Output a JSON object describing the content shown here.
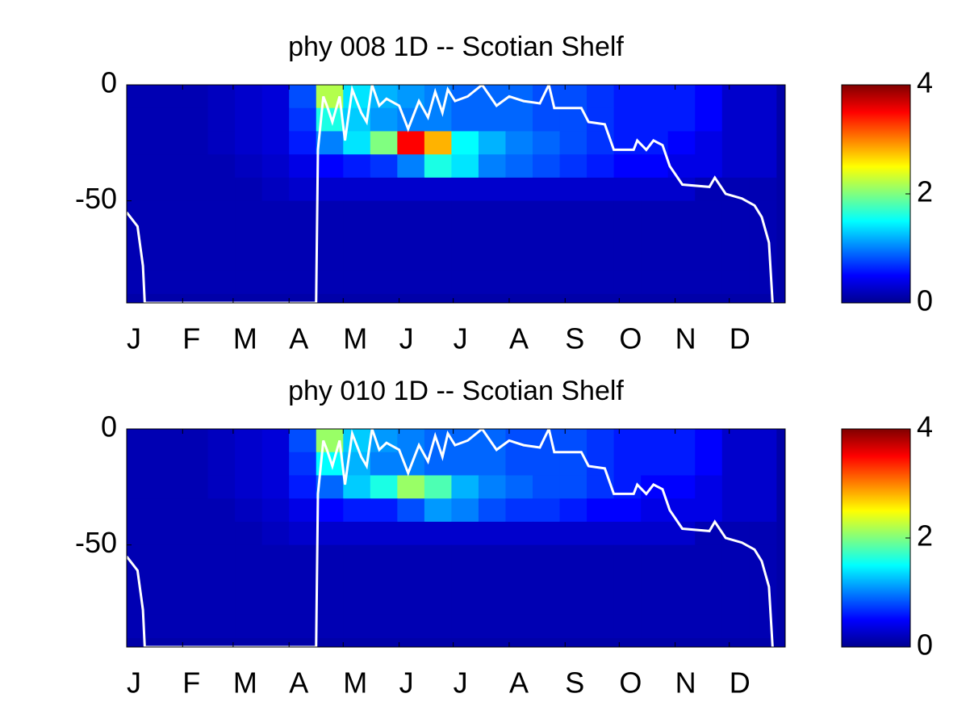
{
  "chart_data": [
    {
      "type": "heatmap",
      "title": "phy  008 1D   -- Scotian Shelf",
      "xlim": [
        0,
        365
      ],
      "xticks": [
        {
          "value": 0,
          "label": "J"
        },
        {
          "value": 31,
          "label": "F"
        },
        {
          "value": 59,
          "label": "M"
        },
        {
          "value": 90,
          "label": "A"
        },
        {
          "value": 120,
          "label": "M"
        },
        {
          "value": 151,
          "label": "J"
        },
        {
          "value": 181,
          "label": "J"
        },
        {
          "value": 212,
          "label": "A"
        },
        {
          "value": 243,
          "label": "S"
        },
        {
          "value": 273,
          "label": "O"
        },
        {
          "value": 304,
          "label": "N"
        },
        {
          "value": 334,
          "label": "D"
        }
      ],
      "ylim": [
        -94,
        0
      ],
      "yticks": [
        -50,
        0
      ],
      "clim": [
        0,
        4
      ],
      "cticks": [
        0,
        2,
        4
      ],
      "x": [
        7.5,
        22.5,
        37.5,
        52.5,
        67.5,
        82.5,
        97.5,
        112.5,
        127.5,
        142.5,
        157.5,
        172.5,
        187.5,
        202.5,
        217.5,
        232.5,
        247.5,
        262.5,
        277.5,
        292.5,
        307.5,
        322.5,
        337.5,
        352.5
      ],
      "y": [
        -5,
        -15,
        -25,
        -35,
        -45,
        -55,
        -65,
        -75,
        -85
      ],
      "z": [
        [
          0.2,
          0.2,
          0.2,
          0.25,
          0.3,
          0.35,
          0.8,
          2.2,
          1.4,
          1.2,
          1.1,
          1.0,
          0.9,
          0.9,
          0.9,
          0.8,
          0.8,
          0.7,
          0.6,
          0.6,
          0.6,
          0.5,
          0.3,
          0.3
        ],
        [
          0.2,
          0.2,
          0.2,
          0.25,
          0.3,
          0.35,
          0.7,
          1.6,
          1.3,
          1.1,
          1.0,
          1.0,
          0.9,
          0.9,
          0.9,
          0.8,
          0.8,
          0.7,
          0.6,
          0.6,
          0.6,
          0.5,
          0.3,
          0.3
        ],
        [
          0.2,
          0.2,
          0.2,
          0.25,
          0.3,
          0.35,
          0.6,
          1.0,
          1.4,
          2.0,
          3.5,
          2.8,
          1.5,
          1.2,
          1.0,
          0.9,
          0.8,
          0.7,
          0.6,
          0.6,
          0.5,
          0.4,
          0.3,
          0.3
        ],
        [
          0.2,
          0.2,
          0.2,
          0.2,
          0.25,
          0.3,
          0.4,
          0.5,
          0.6,
          0.7,
          1.0,
          1.6,
          1.4,
          1.0,
          0.9,
          0.8,
          0.7,
          0.6,
          0.5,
          0.5,
          0.4,
          0.4,
          0.3,
          0.3
        ],
        [
          0.2,
          0.2,
          0.2,
          0.2,
          0.2,
          0.25,
          0.3,
          0.3,
          0.3,
          0.3,
          0.3,
          0.3,
          0.3,
          0.3,
          0.3,
          0.3,
          0.3,
          0.3,
          0.3,
          0.3,
          0.3,
          0.2,
          0.2,
          0.2
        ],
        [
          0.2,
          0.2,
          0.2,
          0.2,
          0.2,
          0.2,
          0.2,
          0.2,
          0.2,
          0.2,
          0.2,
          0.2,
          0.2,
          0.2,
          0.2,
          0.2,
          0.2,
          0.2,
          0.2,
          0.2,
          0.2,
          0.2,
          0.2,
          0.2
        ],
        [
          0.2,
          0.2,
          0.2,
          0.2,
          0.2,
          0.2,
          0.2,
          0.2,
          0.2,
          0.2,
          0.2,
          0.2,
          0.2,
          0.2,
          0.2,
          0.2,
          0.2,
          0.2,
          0.2,
          0.2,
          0.2,
          0.2,
          0.2,
          0.2
        ],
        [
          0.2,
          0.2,
          0.2,
          0.2,
          0.2,
          0.2,
          0.2,
          0.2,
          0.2,
          0.2,
          0.2,
          0.2,
          0.2,
          0.2,
          0.2,
          0.2,
          0.2,
          0.2,
          0.2,
          0.2,
          0.2,
          0.2,
          0.2,
          0.2
        ],
        [
          0.2,
          0.2,
          0.2,
          0.2,
          0.2,
          0.2,
          0.2,
          0.2,
          0.2,
          0.2,
          0.2,
          0.2,
          0.2,
          0.2,
          0.2,
          0.2,
          0.2,
          0.2,
          0.2,
          0.2,
          0.2,
          0.2,
          0.2,
          0.2
        ]
      ],
      "series": [
        {
          "color": "#ffffff",
          "x": [
            0,
            6,
            9,
            10,
            105,
            106,
            109,
            111,
            114,
            118,
            121,
            125,
            130,
            133,
            136,
            140,
            144,
            151,
            156,
            162,
            167,
            171,
            175,
            178,
            182,
            189,
            197,
            205,
            212,
            220,
            229,
            234,
            237,
            252,
            256,
            265,
            270,
            281,
            283,
            288,
            292,
            297,
            301,
            308,
            323,
            326,
            332,
            341,
            348,
            352,
            356,
            358
          ],
          "values": [
            -55,
            -61,
            -78,
            -94,
            -94,
            -28,
            -5,
            -9,
            -16,
            -5,
            -24,
            -2,
            -12,
            -16,
            0,
            -9,
            -6,
            -9,
            -19,
            -7,
            -14,
            -3,
            -12,
            -2,
            -7,
            -5,
            0,
            -9,
            -5,
            -7,
            -8,
            0,
            -10,
            -10,
            -16,
            -17,
            -28,
            -28,
            -24,
            -28,
            -24,
            -26,
            -35,
            -43,
            -44,
            -40,
            -47,
            -49,
            -52,
            -57,
            -68,
            -94
          ]
        }
      ]
    },
    {
      "type": "heatmap",
      "title": "phy  010 1D   -- Scotian Shelf",
      "xlim": [
        0,
        365
      ],
      "xticks": [
        {
          "value": 0,
          "label": "J"
        },
        {
          "value": 31,
          "label": "F"
        },
        {
          "value": 59,
          "label": "M"
        },
        {
          "value": 90,
          "label": "A"
        },
        {
          "value": 120,
          "label": "M"
        },
        {
          "value": 151,
          "label": "J"
        },
        {
          "value": 181,
          "label": "J"
        },
        {
          "value": 212,
          "label": "A"
        },
        {
          "value": 243,
          "label": "S"
        },
        {
          "value": 273,
          "label": "O"
        },
        {
          "value": 304,
          "label": "N"
        },
        {
          "value": 334,
          "label": "D"
        }
      ],
      "ylim": [
        -94,
        0
      ],
      "yticks": [
        -50,
        0
      ],
      "clim": [
        0,
        4
      ],
      "cticks": [
        0,
        2,
        4
      ],
      "x": [
        7.5,
        22.5,
        37.5,
        52.5,
        67.5,
        82.5,
        97.5,
        112.5,
        127.5,
        142.5,
        157.5,
        172.5,
        187.5,
        202.5,
        217.5,
        232.5,
        247.5,
        262.5,
        277.5,
        292.5,
        307.5,
        322.5,
        337.5,
        352.5
      ],
      "y": [
        -5,
        -15,
        -25,
        -35,
        -45,
        -55,
        -65,
        -75,
        -85
      ],
      "z": [
        [
          0.2,
          0.2,
          0.2,
          0.25,
          0.3,
          0.35,
          0.8,
          2.1,
          1.3,
          1.1,
          1.0,
          0.9,
          0.9,
          0.9,
          0.8,
          0.8,
          0.8,
          0.7,
          0.6,
          0.6,
          0.6,
          0.5,
          0.3,
          0.3
        ],
        [
          0.2,
          0.2,
          0.2,
          0.25,
          0.3,
          0.35,
          0.7,
          1.5,
          1.2,
          1.0,
          1.0,
          0.9,
          0.9,
          0.9,
          0.8,
          0.8,
          0.8,
          0.7,
          0.6,
          0.6,
          0.6,
          0.5,
          0.3,
          0.3
        ],
        [
          0.2,
          0.2,
          0.2,
          0.25,
          0.3,
          0.35,
          0.6,
          0.9,
          1.3,
          1.6,
          2.1,
          1.8,
          1.2,
          1.0,
          0.9,
          0.8,
          0.8,
          0.7,
          0.6,
          0.5,
          0.5,
          0.4,
          0.3,
          0.3
        ],
        [
          0.2,
          0.2,
          0.2,
          0.2,
          0.25,
          0.3,
          0.4,
          0.5,
          0.6,
          0.6,
          0.8,
          1.1,
          1.0,
          0.8,
          0.7,
          0.7,
          0.6,
          0.5,
          0.5,
          0.4,
          0.4,
          0.4,
          0.3,
          0.3
        ],
        [
          0.2,
          0.2,
          0.2,
          0.2,
          0.2,
          0.25,
          0.3,
          0.3,
          0.3,
          0.3,
          0.3,
          0.3,
          0.3,
          0.3,
          0.3,
          0.3,
          0.3,
          0.3,
          0.3,
          0.3,
          0.3,
          0.2,
          0.2,
          0.2
        ],
        [
          0.2,
          0.2,
          0.2,
          0.2,
          0.2,
          0.2,
          0.2,
          0.2,
          0.2,
          0.2,
          0.2,
          0.2,
          0.2,
          0.2,
          0.2,
          0.2,
          0.2,
          0.2,
          0.2,
          0.2,
          0.2,
          0.2,
          0.2,
          0.2
        ],
        [
          0.2,
          0.2,
          0.2,
          0.2,
          0.2,
          0.2,
          0.2,
          0.2,
          0.2,
          0.2,
          0.2,
          0.2,
          0.2,
          0.2,
          0.2,
          0.2,
          0.2,
          0.2,
          0.2,
          0.2,
          0.2,
          0.2,
          0.2,
          0.2
        ],
        [
          0.2,
          0.2,
          0.2,
          0.2,
          0.2,
          0.2,
          0.2,
          0.2,
          0.2,
          0.2,
          0.2,
          0.2,
          0.2,
          0.2,
          0.2,
          0.2,
          0.2,
          0.2,
          0.2,
          0.2,
          0.2,
          0.2,
          0.2,
          0.2
        ],
        [
          0.2,
          0.2,
          0.2,
          0.2,
          0.2,
          0.2,
          0.2,
          0.2,
          0.2,
          0.2,
          0.2,
          0.2,
          0.2,
          0.2,
          0.2,
          0.2,
          0.2,
          0.2,
          0.2,
          0.2,
          0.2,
          0.2,
          0.2,
          0.2
        ]
      ],
      "series": [
        {
          "color": "#ffffff",
          "x": [
            0,
            6,
            9,
            10,
            105,
            106,
            109,
            111,
            114,
            118,
            121,
            125,
            130,
            133,
            136,
            140,
            144,
            151,
            156,
            162,
            167,
            171,
            175,
            178,
            182,
            189,
            197,
            205,
            212,
            220,
            229,
            234,
            237,
            252,
            256,
            265,
            270,
            281,
            283,
            288,
            292,
            297,
            301,
            308,
            323,
            326,
            332,
            341,
            348,
            352,
            356,
            358
          ],
          "values": [
            -55,
            -61,
            -78,
            -94,
            -94,
            -28,
            -5,
            -9,
            -16,
            -5,
            -24,
            -2,
            -12,
            -16,
            0,
            -9,
            -6,
            -9,
            -19,
            -7,
            -14,
            -3,
            -12,
            -2,
            -7,
            -5,
            0,
            -9,
            -5,
            -7,
            -8,
            0,
            -10,
            -10,
            -16,
            -17,
            -28,
            -28,
            -24,
            -28,
            -24,
            -26,
            -35,
            -43,
            -44,
            -40,
            -47,
            -49,
            -52,
            -57,
            -68,
            -94
          ]
        }
      ]
    }
  ]
}
